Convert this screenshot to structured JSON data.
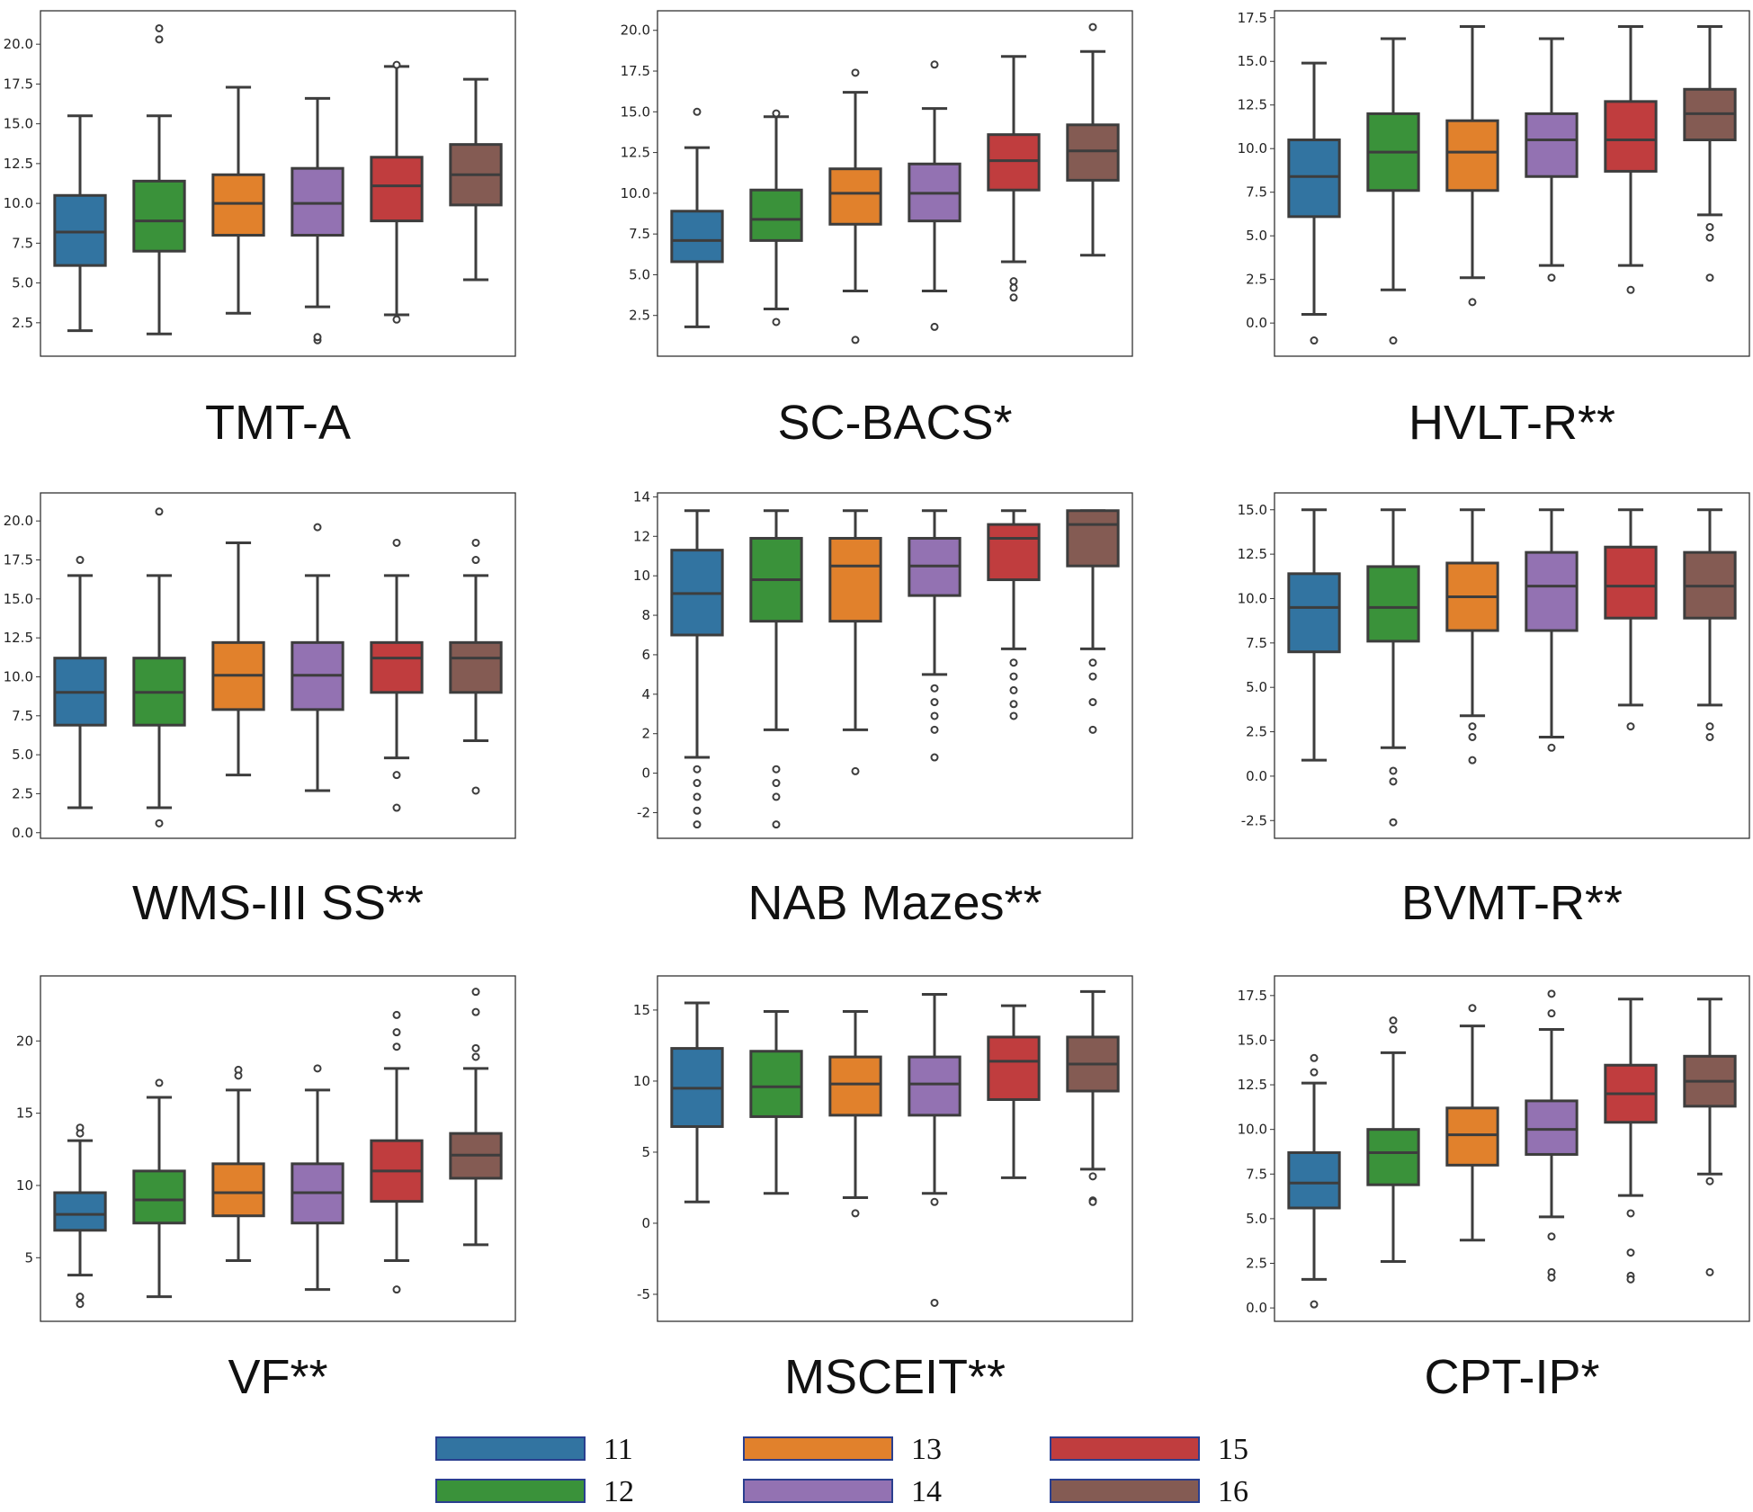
{
  "chart_data": {
    "type": "boxplot",
    "legend": {
      "placement": "bottom-center",
      "entries": [
        "11",
        "12",
        "13",
        "14",
        "15",
        "16"
      ]
    },
    "colors": [
      "#3274a1",
      "#3a923a",
      "#e1812c",
      "#9372b2",
      "#c03d3e",
      "#845b53"
    ],
    "panels": [
      {
        "title": "TMT-A",
        "ylim": [
          0.4,
          22.1
        ],
        "ticks": [
          "2.5",
          "5.0",
          "7.5",
          "10.0",
          "12.5",
          "15.0",
          "17.5",
          "20.0"
        ],
        "boxes": [
          {
            "low": 2.0,
            "q1": 6.1,
            "median": 8.2,
            "q3": 10.5,
            "high": 15.5,
            "outliers": []
          },
          {
            "low": 1.8,
            "q1": 7.0,
            "median": 8.9,
            "q3": 11.4,
            "high": 15.5,
            "outliers": [
              20.3,
              21.0
            ]
          },
          {
            "low": 3.1,
            "q1": 8.0,
            "median": 10.0,
            "q3": 11.8,
            "high": 17.3,
            "outliers": []
          },
          {
            "low": 3.5,
            "q1": 8.0,
            "median": 10.0,
            "q3": 12.2,
            "high": 16.6,
            "outliers": [
              1.4,
              1.6
            ]
          },
          {
            "low": 3.0,
            "q1": 8.9,
            "median": 11.1,
            "q3": 12.9,
            "high": 18.6,
            "outliers": [
              2.7,
              18.7
            ]
          },
          {
            "low": 5.2,
            "q1": 9.9,
            "median": 11.8,
            "q3": 13.7,
            "high": 17.8,
            "outliers": []
          }
        ]
      },
      {
        "title": "SC-BACS*",
        "ylim": [
          0,
          21.2
        ],
        "ticks": [
          "2.5",
          "5.0",
          "7.5",
          "10.0",
          "12.5",
          "15.0",
          "17.5",
          "20.0"
        ],
        "boxes": [
          {
            "low": 1.8,
            "q1": 5.8,
            "median": 7.1,
            "q3": 8.9,
            "high": 12.8,
            "outliers": [
              15.0
            ]
          },
          {
            "low": 2.9,
            "q1": 7.1,
            "median": 8.4,
            "q3": 10.2,
            "high": 14.7,
            "outliers": [
              2.1,
              14.9
            ]
          },
          {
            "low": 4.0,
            "q1": 8.1,
            "median": 10.0,
            "q3": 11.5,
            "high": 16.2,
            "outliers": [
              17.4,
              1.0
            ]
          },
          {
            "low": 4.0,
            "q1": 8.3,
            "median": 10.0,
            "q3": 11.8,
            "high": 15.2,
            "outliers": [
              17.9,
              1.8
            ]
          },
          {
            "low": 5.8,
            "q1": 10.2,
            "median": 12.0,
            "q3": 13.6,
            "high": 18.4,
            "outliers": [
              4.6,
              4.2,
              3.6
            ]
          },
          {
            "low": 6.2,
            "q1": 10.8,
            "median": 12.6,
            "q3": 14.2,
            "high": 18.7,
            "outliers": [
              20.2
            ]
          }
        ]
      },
      {
        "title": "HVLT-R**",
        "ylim": [
          -1.9,
          17.9
        ],
        "ticks": [
          "0.0",
          "2.5",
          "5.0",
          "7.5",
          "10.0",
          "12.5",
          "15.0",
          "17.5"
        ],
        "boxes": [
          {
            "low": 0.5,
            "q1": 6.1,
            "median": 8.4,
            "q3": 10.5,
            "high": 14.9,
            "outliers": [
              -1.0
            ]
          },
          {
            "low": 1.9,
            "q1": 7.6,
            "median": 9.8,
            "q3": 12.0,
            "high": 16.3,
            "outliers": [
              -1.0
            ]
          },
          {
            "low": 2.6,
            "q1": 7.6,
            "median": 9.8,
            "q3": 11.6,
            "high": 17.0,
            "outliers": [
              1.2
            ]
          },
          {
            "low": 3.3,
            "q1": 8.4,
            "median": 10.5,
            "q3": 12.0,
            "high": 16.3,
            "outliers": [
              2.6
            ]
          },
          {
            "low": 3.3,
            "q1": 8.7,
            "median": 10.5,
            "q3": 12.7,
            "high": 17.0,
            "outliers": [
              1.9
            ]
          },
          {
            "low": 6.2,
            "q1": 10.5,
            "median": 12.0,
            "q3": 13.4,
            "high": 17.0,
            "outliers": [
              5.5,
              4.9,
              2.6
            ]
          }
        ]
      },
      {
        "title": "WMS-III SS**",
        "ylim": [
          -0.36,
          21.8
        ],
        "ticks": [
          "0.0",
          "2.5",
          "5.0",
          "7.5",
          "10.0",
          "12.5",
          "15.0",
          "17.5",
          "20.0"
        ],
        "boxes": [
          {
            "low": 1.6,
            "q1": 6.9,
            "median": 9.0,
            "q3": 11.2,
            "high": 16.5,
            "outliers": [
              17.5
            ]
          },
          {
            "low": 1.6,
            "q1": 6.9,
            "median": 9.0,
            "q3": 11.2,
            "high": 16.5,
            "outliers": [
              0.6,
              20.6
            ]
          },
          {
            "low": 3.7,
            "q1": 7.9,
            "median": 10.1,
            "q3": 12.2,
            "high": 18.6,
            "outliers": []
          },
          {
            "low": 2.7,
            "q1": 7.9,
            "median": 10.1,
            "q3": 12.2,
            "high": 16.5,
            "outliers": [
              19.6
            ]
          },
          {
            "low": 4.8,
            "q1": 9.0,
            "median": 11.2,
            "q3": 12.2,
            "high": 16.5,
            "outliers": [
              18.6,
              3.7,
              1.6
            ]
          },
          {
            "low": 5.9,
            "q1": 9.0,
            "median": 11.2,
            "q3": 12.2,
            "high": 16.5,
            "outliers": [
              18.6,
              17.5,
              2.7
            ]
          }
        ]
      },
      {
        "title": "NAB Mazes**",
        "ylim": [
          -3.3,
          14.2
        ],
        "ticks": [
          "-2",
          "0",
          "2",
          "4",
          "6",
          "8",
          "10",
          "12",
          "14"
        ],
        "boxes": [
          {
            "low": 0.8,
            "q1": 7.0,
            "median": 9.1,
            "q3": 11.3,
            "high": 13.3,
            "outliers": [
              0.2,
              -0.5,
              -1.2,
              -1.9,
              -2.6
            ]
          },
          {
            "low": 2.2,
            "q1": 7.7,
            "median": 9.8,
            "q3": 11.9,
            "high": 13.3,
            "outliers": [
              0.2,
              -0.5,
              -1.2,
              -2.6
            ]
          },
          {
            "low": 2.2,
            "q1": 7.7,
            "median": 10.5,
            "q3": 11.9,
            "high": 13.3,
            "outliers": [
              0.1
            ]
          },
          {
            "low": 5.0,
            "q1": 9.0,
            "median": 10.5,
            "q3": 11.9,
            "high": 13.3,
            "outliers": [
              4.3,
              3.6,
              2.9,
              2.2,
              0.8
            ]
          },
          {
            "low": 6.3,
            "q1": 9.8,
            "median": 11.9,
            "q3": 12.6,
            "high": 13.3,
            "outliers": [
              5.6,
              4.9,
              4.2,
              3.5,
              2.9
            ]
          },
          {
            "low": 6.3,
            "q1": 10.5,
            "median": 12.6,
            "q3": 13.3,
            "high": 13.3,
            "outliers": [
              5.6,
              4.9,
              3.6,
              2.2
            ]
          }
        ]
      },
      {
        "title": "BVMT-R**",
        "ylim": [
          -3.5,
          15.95
        ],
        "ticks": [
          "-2.5",
          "0.0",
          "2.5",
          "5.0",
          "7.5",
          "10.0",
          "12.5",
          "15.0"
        ],
        "boxes": [
          {
            "low": 0.9,
            "q1": 7.0,
            "median": 9.5,
            "q3": 11.4,
            "high": 15.0,
            "outliers": []
          },
          {
            "low": 1.6,
            "q1": 7.6,
            "median": 9.5,
            "q3": 11.8,
            "high": 15.0,
            "outliers": [
              0.3,
              -0.3,
              -2.6
            ]
          },
          {
            "low": 3.4,
            "q1": 8.2,
            "median": 10.1,
            "q3": 12.0,
            "high": 15.0,
            "outliers": [
              2.8,
              2.2,
              0.9
            ]
          },
          {
            "low": 2.2,
            "q1": 8.2,
            "median": 10.7,
            "q3": 12.6,
            "high": 15.0,
            "outliers": [
              1.6
            ]
          },
          {
            "low": 4.0,
            "q1": 8.9,
            "median": 10.7,
            "q3": 12.9,
            "high": 15.0,
            "outliers": [
              2.8
            ]
          },
          {
            "low": 4.0,
            "q1": 8.9,
            "median": 10.7,
            "q3": 12.6,
            "high": 15.0,
            "outliers": [
              2.8,
              2.2
            ]
          }
        ]
      },
      {
        "title": "VF**",
        "ylim": [
          0.6,
          24.5
        ],
        "ticks": [
          "5",
          "10",
          "15",
          "20"
        ],
        "boxes": [
          {
            "low": 3.8,
            "q1": 6.9,
            "median": 8.0,
            "q3": 9.5,
            "high": 13.1,
            "outliers": [
              14.0,
              13.6,
              2.3,
              1.8
            ]
          },
          {
            "low": 2.3,
            "q1": 7.4,
            "median": 9.0,
            "q3": 11.0,
            "high": 16.1,
            "outliers": [
              17.1
            ]
          },
          {
            "low": 4.8,
            "q1": 7.9,
            "median": 9.5,
            "q3": 11.5,
            "high": 16.6,
            "outliers": [
              18.0,
              17.6
            ]
          },
          {
            "low": 2.8,
            "q1": 7.4,
            "median": 9.5,
            "q3": 11.5,
            "high": 16.6,
            "outliers": [
              18.1
            ]
          },
          {
            "low": 4.8,
            "q1": 8.9,
            "median": 11.0,
            "q3": 13.1,
            "high": 18.1,
            "outliers": [
              21.8,
              20.6,
              19.6,
              2.8
            ]
          },
          {
            "low": 5.9,
            "q1": 10.5,
            "median": 12.1,
            "q3": 13.6,
            "high": 18.1,
            "outliers": [
              23.4,
              22.0,
              19.5,
              18.9
            ]
          }
        ]
      },
      {
        "title": "MSCEIT**",
        "ylim": [
          -6.9,
          17.4
        ],
        "ticks": [
          "-5",
          "0",
          "5",
          "10",
          "15"
        ],
        "boxes": [
          {
            "low": 1.5,
            "q1": 6.8,
            "median": 9.5,
            "q3": 12.3,
            "high": 15.5,
            "outliers": []
          },
          {
            "low": 2.1,
            "q1": 7.5,
            "median": 9.6,
            "q3": 12.1,
            "high": 14.9,
            "outliers": []
          },
          {
            "low": 1.8,
            "q1": 7.6,
            "median": 9.8,
            "q3": 11.7,
            "high": 14.9,
            "outliers": [
              0.7
            ]
          },
          {
            "low": 2.1,
            "q1": 7.6,
            "median": 9.8,
            "q3": 11.7,
            "high": 16.1,
            "outliers": [
              1.5,
              -5.6
            ]
          },
          {
            "low": 3.2,
            "q1": 8.7,
            "median": 11.4,
            "q3": 13.1,
            "high": 15.3,
            "outliers": []
          },
          {
            "low": 3.8,
            "q1": 9.3,
            "median": 11.2,
            "q3": 13.1,
            "high": 16.3,
            "outliers": [
              3.3,
              1.6,
              1.5
            ]
          }
        ]
      },
      {
        "title": "CPT-IP*",
        "ylim": [
          -0.75,
          18.6
        ],
        "ticks": [
          "0.0",
          "2.5",
          "5.0",
          "7.5",
          "10.0",
          "12.5",
          "15.0",
          "17.5"
        ],
        "boxes": [
          {
            "low": 1.6,
            "q1": 5.6,
            "median": 7.0,
            "q3": 8.7,
            "high": 12.6,
            "outliers": [
              14.0,
              13.2,
              0.2
            ]
          },
          {
            "low": 2.6,
            "q1": 6.9,
            "median": 8.7,
            "q3": 10.0,
            "high": 14.3,
            "outliers": [
              16.1,
              15.6
            ]
          },
          {
            "low": 3.8,
            "q1": 8.0,
            "median": 9.7,
            "q3": 11.2,
            "high": 15.8,
            "outliers": [
              16.8
            ]
          },
          {
            "low": 5.1,
            "q1": 8.6,
            "median": 10.0,
            "q3": 11.6,
            "high": 15.6,
            "outliers": [
              17.6,
              16.5,
              4.0,
              2.0,
              1.7
            ]
          },
          {
            "low": 6.3,
            "q1": 10.4,
            "median": 12.0,
            "q3": 13.6,
            "high": 17.3,
            "outliers": [
              5.3,
              3.1,
              1.8,
              1.6
            ]
          },
          {
            "low": 7.5,
            "q1": 11.3,
            "median": 12.7,
            "q3": 14.1,
            "high": 17.3,
            "outliers": [
              7.1,
              2.0
            ]
          }
        ]
      }
    ]
  }
}
